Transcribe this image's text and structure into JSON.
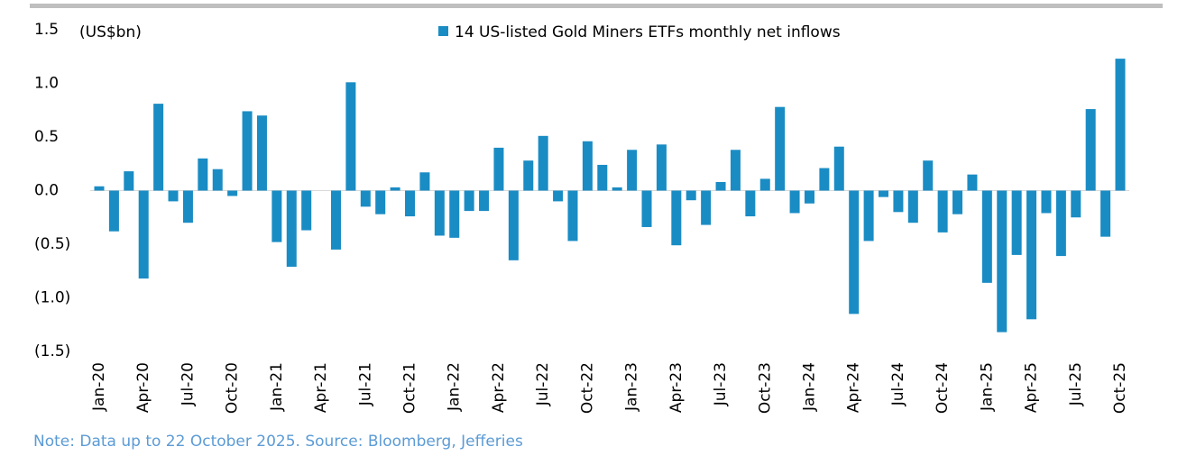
{
  "chart_data": {
    "type": "bar",
    "y_label": "(US$bn)",
    "note": "Note: Data up to 22 October 2025. Source: Bloomberg, Jefferies",
    "categories": [
      "Jan-20",
      null,
      null,
      "Apr-20",
      null,
      null,
      "Jul-20",
      null,
      null,
      "Oct-20",
      null,
      null,
      "Jan-21",
      null,
      null,
      "Apr-21",
      null,
      null,
      "Jul-21",
      null,
      null,
      "Oct-21",
      null,
      null,
      "Jan-22",
      null,
      null,
      "Apr-22",
      null,
      null,
      "Jul-22",
      null,
      null,
      "Oct-22",
      null,
      null,
      "Jan-23",
      null,
      null,
      "Apr-23",
      null,
      null,
      "Jul-23",
      null,
      null,
      "Oct-23",
      null,
      null,
      "Jan-24",
      null,
      null,
      "Apr-24",
      null,
      null,
      "Jul-24",
      null,
      null,
      "Oct-24",
      null,
      null,
      "Jan-25",
      null,
      null,
      "Apr-25",
      null,
      null,
      "Jul-25",
      null,
      null,
      "Oct-25"
    ],
    "series": [
      {
        "name": "14 US-listed Gold Miners ETFs monthly net inflows",
        "color": "#1a8cc4",
        "values": [
          0.04,
          -0.38,
          0.18,
          -0.82,
          0.81,
          -0.1,
          -0.3,
          0.3,
          0.2,
          -0.05,
          0.74,
          0.7,
          -0.48,
          -0.71,
          -0.37,
          0,
          -0.55,
          1.01,
          -0.15,
          -0.22,
          0.03,
          -0.24,
          0.17,
          -0.42,
          -0.44,
          -0.19,
          -0.19,
          0.4,
          -0.65,
          0.28,
          0.51,
          -0.1,
          -0.47,
          0.46,
          0.24,
          0.03,
          0.38,
          -0.34,
          0.43,
          -0.51,
          -0.09,
          -0.32,
          0.08,
          0.38,
          -0.24,
          0.11,
          0.78,
          -0.21,
          -0.12,
          0.21,
          0.41,
          -1.15,
          -0.47,
          -0.06,
          -0.2,
          -0.3,
          0.28,
          -0.39,
          -0.22,
          0.15,
          -0.86,
          -1.32,
          -0.6,
          -1.2,
          -0.21,
          -0.61,
          -0.25,
          0.76,
          -0.43,
          1.23
        ]
      }
    ],
    "ylim": [
      -1.5,
      1.5
    ],
    "yticks": [
      1.5,
      {
        "value": 1.0,
        "label": "1.0"
      },
      0.5,
      {
        "value": 0,
        "label": "0.0"
      },
      {
        "value": -0.5,
        "label": "(0.5)"
      },
      {
        "value": -1.0,
        "label": "(1.0)"
      },
      {
        "value": -1.5,
        "label": "(1.5)"
      }
    ],
    "grid": false
  }
}
